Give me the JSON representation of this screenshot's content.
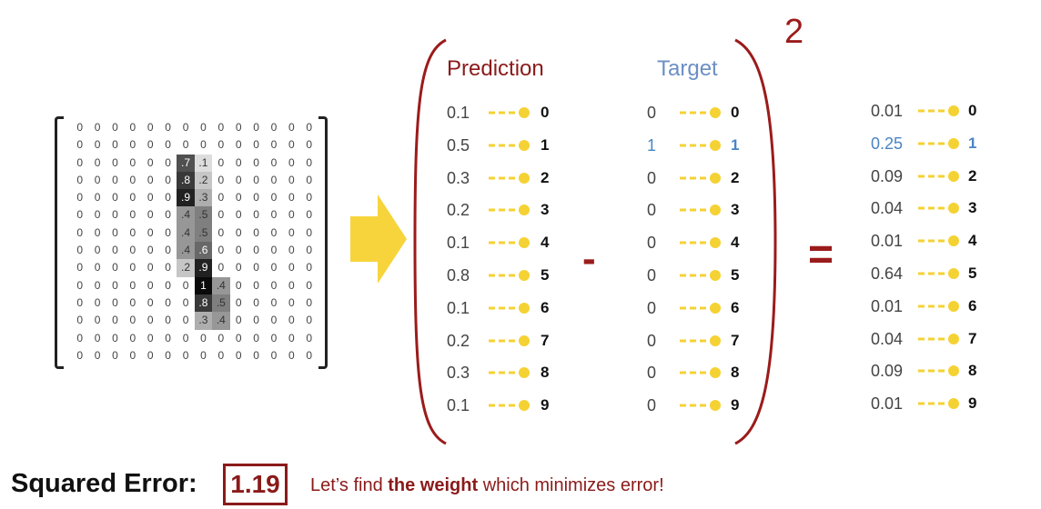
{
  "input_grid": [
    [
      "0",
      "0",
      "0",
      "0",
      "0",
      "0",
      "0",
      "0",
      "0",
      "0",
      "0",
      "0",
      "0",
      "0"
    ],
    [
      "0",
      "0",
      "0",
      "0",
      "0",
      "0",
      "0",
      "0",
      "0",
      "0",
      "0",
      "0",
      "0",
      "0"
    ],
    [
      "0",
      "0",
      "0",
      "0",
      "0",
      "0",
      ".7",
      ".1",
      "0",
      "0",
      "0",
      "0",
      "0",
      "0"
    ],
    [
      "0",
      "0",
      "0",
      "0",
      "0",
      "0",
      ".8",
      ".2",
      "0",
      "0",
      "0",
      "0",
      "0",
      "0"
    ],
    [
      "0",
      "0",
      "0",
      "0",
      "0",
      "0",
      ".9",
      ".3",
      "0",
      "0",
      "0",
      "0",
      "0",
      "0"
    ],
    [
      "0",
      "0",
      "0",
      "0",
      "0",
      "0",
      ".4",
      ".5",
      "0",
      "0",
      "0",
      "0",
      "0",
      "0"
    ],
    [
      "0",
      "0",
      "0",
      "0",
      "0",
      "0",
      ".4",
      ".5",
      "0",
      "0",
      "0",
      "0",
      "0",
      "0"
    ],
    [
      "0",
      "0",
      "0",
      "0",
      "0",
      "0",
      ".4",
      ".6",
      "0",
      "0",
      "0",
      "0",
      "0",
      "0"
    ],
    [
      "0",
      "0",
      "0",
      "0",
      "0",
      "0",
      ".2",
      ".9",
      "0",
      "0",
      "0",
      "0",
      "0",
      "0"
    ],
    [
      "0",
      "0",
      "0",
      "0",
      "0",
      "0",
      "0",
      "1",
      ".4",
      "0",
      "0",
      "0",
      "0",
      "0"
    ],
    [
      "0",
      "0",
      "0",
      "0",
      "0",
      "0",
      "0",
      ".8",
      ".5",
      "0",
      "0",
      "0",
      "0",
      "0"
    ],
    [
      "0",
      "0",
      "0",
      "0",
      "0",
      "0",
      "0",
      ".3",
      ".4",
      "0",
      "0",
      "0",
      "0",
      "0"
    ],
    [
      "0",
      "0",
      "0",
      "0",
      "0",
      "0",
      "0",
      "0",
      "0",
      "0",
      "0",
      "0",
      "0",
      "0"
    ],
    [
      "0",
      "0",
      "0",
      "0",
      "0",
      "0",
      "0",
      "0",
      "0",
      "0",
      "0",
      "0",
      "0",
      "0"
    ]
  ],
  "prediction": {
    "header": "Prediction",
    "values": [
      "0.1",
      "0.5",
      "0.3",
      "0.2",
      "0.1",
      "0.8",
      "0.1",
      "0.2",
      "0.3",
      "0.1"
    ]
  },
  "target": {
    "header": "Target",
    "values": [
      "0",
      "1",
      "0",
      "0",
      "0",
      "0",
      "0",
      "0",
      "0",
      "0"
    ],
    "highlight_index": 1
  },
  "result": {
    "values": [
      "0.01",
      "0.25",
      "0.09",
      "0.04",
      "0.01",
      "0.64",
      "0.01",
      "0.04",
      "0.09",
      "0.01"
    ],
    "highlight_index": 1
  },
  "digits": [
    "0",
    "1",
    "2",
    "3",
    "4",
    "5",
    "6",
    "7",
    "8",
    "9"
  ],
  "operators": {
    "minus": "-",
    "equals": "=",
    "exponent": "2"
  },
  "footer": {
    "label": "Squared Error:",
    "value": "1.19",
    "caption_pre": "Let’s find ",
    "caption_bold": "the weight",
    "caption_post": " which minimizes error!"
  },
  "colors": {
    "accent_red": "#8b1a1a",
    "target_blue": "#6b8fc4",
    "highlight_blue": "#4a84c4",
    "connector_yellow": "#f5d234",
    "arrow_yellow": "#f7d43c"
  }
}
